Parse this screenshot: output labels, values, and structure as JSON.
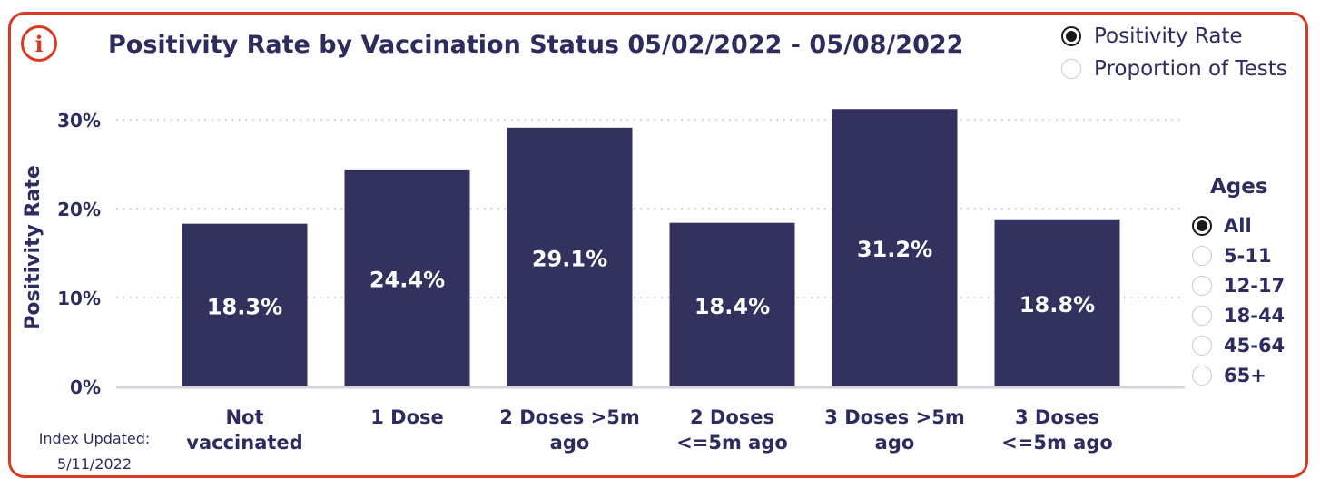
{
  "header": {
    "title": "Positivity Rate by Vaccination Status 05/02/2022 - 05/08/2022",
    "info_icon": "info-icon"
  },
  "metric_toggle": [
    {
      "label": "Positivity Rate",
      "selected": true
    },
    {
      "label": "Proportion of Tests",
      "selected": false
    }
  ],
  "ages": {
    "title": "Ages",
    "options": [
      {
        "label": "All",
        "selected": true
      },
      {
        "label": "5-11",
        "selected": false
      },
      {
        "label": "12-17",
        "selected": false
      },
      {
        "label": "18-44",
        "selected": false
      },
      {
        "label": "45-64",
        "selected": false
      },
      {
        "label": "65+",
        "selected": false
      }
    ]
  },
  "footer": {
    "index_updated_label": "Index Updated:",
    "index_updated_date": "5/11/2022"
  },
  "colors": {
    "bar": "#33325f",
    "accent_border": "#d93a22",
    "text": "#2e2c5e"
  },
  "chart_data": {
    "type": "bar",
    "title": "Positivity Rate by Vaccination Status 05/02/2022 - 05/08/2022",
    "xlabel": "",
    "ylabel": "Positivity Rate",
    "categories": [
      [
        "Not",
        "vaccinated"
      ],
      [
        "1 Dose"
      ],
      [
        "2 Doses >5m",
        "ago"
      ],
      [
        "2 Doses",
        "<=5m ago"
      ],
      [
        "3 Doses >5m",
        "ago"
      ],
      [
        "3 Doses",
        "<=5m ago"
      ]
    ],
    "values": [
      18.3,
      24.4,
      29.1,
      18.4,
      31.2,
      18.8
    ],
    "data_labels": [
      "18.3%",
      "24.4%",
      "29.1%",
      "18.4%",
      "31.2%",
      "18.8%"
    ],
    "y_ticks": [
      0,
      10,
      20,
      30
    ],
    "y_tick_labels": [
      "0%",
      "10%",
      "20%",
      "30%"
    ],
    "ylim": [
      0,
      31.5
    ],
    "grid": true
  }
}
